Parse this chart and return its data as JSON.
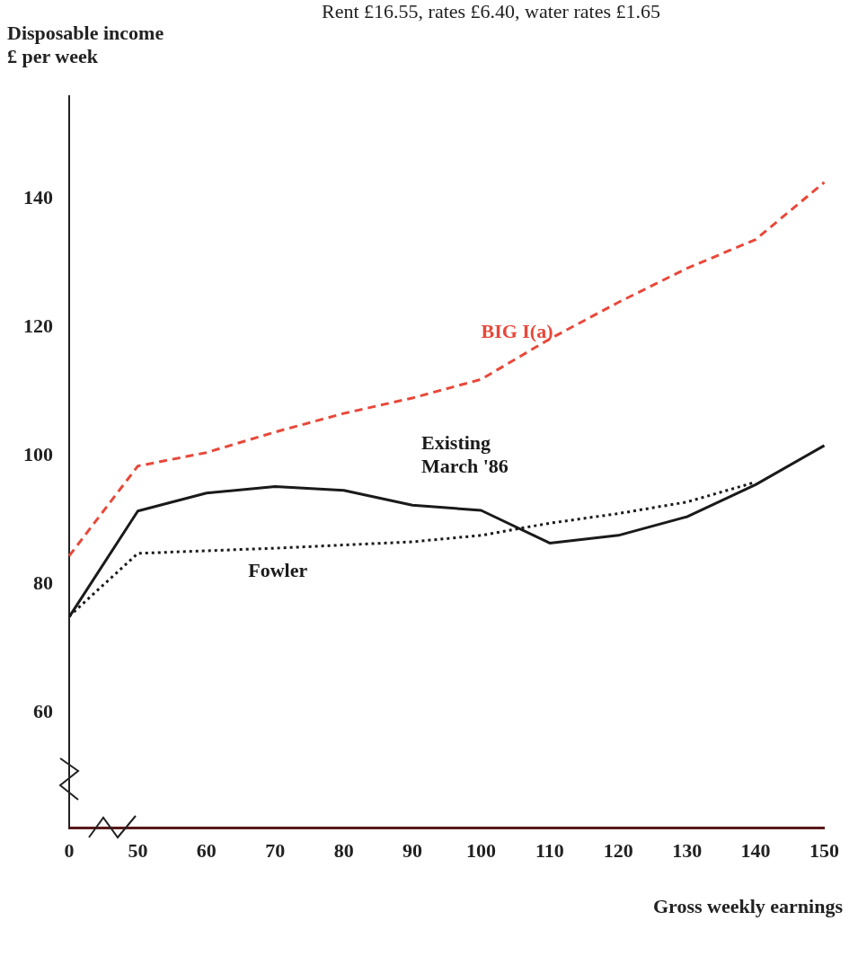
{
  "chart_data": {
    "type": "line",
    "subtitle": "Rent £16.55, rates £6.40, water rates £1.65",
    "ylabel": "Disposable income\n£ per week",
    "xlabel": "Gross weekly earnings",
    "categories": [
      "0",
      "50",
      "60",
      "70",
      "80",
      "90",
      "100",
      "110",
      "120",
      "130",
      "140",
      "150"
    ],
    "ylim": [
      42,
      156
    ],
    "yticks": [
      60,
      80,
      100,
      120,
      140
    ],
    "grid": false,
    "legend": false,
    "marker": "none",
    "series": [
      {
        "name": "BIG I(a)",
        "color": "#e8483a",
        "line_style": "dashed",
        "values": [
          84.4,
          98.4,
          100.5,
          103.7,
          106.6,
          109.0,
          111.9,
          118.2,
          123.9,
          129.2,
          133.7,
          142.6
        ]
      },
      {
        "name": "Existing\nMarch '86",
        "color": "#1a1a1a",
        "line_style": "solid",
        "values": [
          74.9,
          91.4,
          94.2,
          95.2,
          94.6,
          92.3,
          91.5,
          86.4,
          87.6,
          90.5,
          95.5,
          101.6
        ]
      },
      {
        "name": "Fowler",
        "color": "#1a1a1a",
        "line_style": "dotted",
        "values": [
          75,
          84.8,
          85.2,
          85.6,
          86.1,
          86.6,
          87.6,
          89.5,
          91.0,
          92.8,
          95.9,
          null
        ]
      }
    ]
  }
}
